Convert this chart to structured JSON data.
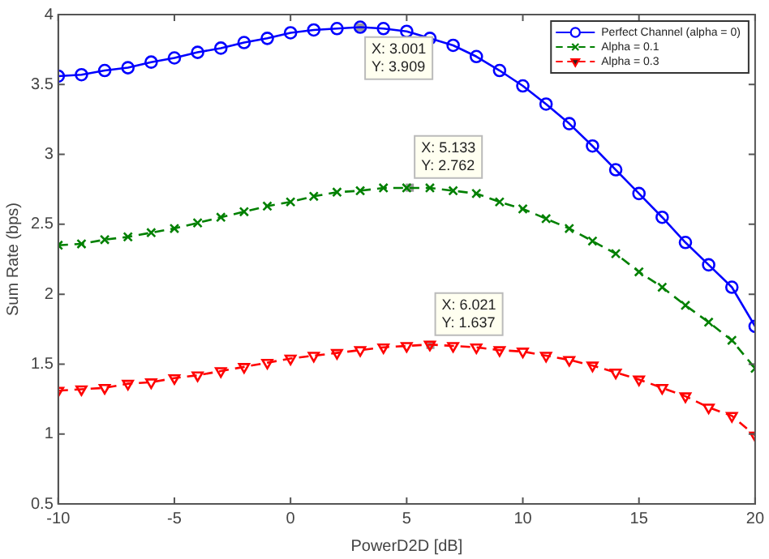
{
  "chart_data": {
    "type": "line",
    "xlabel": "PowerD2D [dB]",
    "ylabel": "Sum Rate (bps)",
    "x": [
      -10,
      -9,
      -8,
      -7,
      -6,
      -5,
      -4,
      -3,
      -2,
      -1,
      0,
      1,
      2,
      3,
      4,
      5,
      6,
      7,
      8,
      9,
      10,
      11,
      12,
      13,
      14,
      15,
      16,
      17,
      18,
      19,
      20
    ],
    "series": [
      {
        "name": "Perfect Channel (alpha = 0)",
        "color": "#0000ff",
        "marker": "circle",
        "line_style": "solid",
        "values": [
          3.56,
          3.57,
          3.6,
          3.62,
          3.66,
          3.69,
          3.73,
          3.76,
          3.8,
          3.83,
          3.87,
          3.89,
          3.9,
          3.91,
          3.9,
          3.88,
          3.83,
          3.78,
          3.7,
          3.6,
          3.49,
          3.36,
          3.22,
          3.06,
          2.89,
          2.72,
          2.55,
          2.37,
          2.21,
          2.05,
          1.77
        ]
      },
      {
        "name": "Alpha = 0.1",
        "color": "#008000",
        "marker": "cross",
        "line_style": "dashed",
        "values": [
          2.35,
          2.36,
          2.39,
          2.41,
          2.44,
          2.47,
          2.51,
          2.55,
          2.59,
          2.63,
          2.66,
          2.7,
          2.73,
          2.74,
          2.76,
          2.76,
          2.76,
          2.74,
          2.72,
          2.66,
          2.61,
          2.54,
          2.47,
          2.38,
          2.29,
          2.16,
          2.05,
          1.92,
          1.8,
          1.67,
          1.47
        ]
      },
      {
        "name": "Alpha = 0.3",
        "color": "#ff0000",
        "marker": "triangle",
        "line_style": "dashed",
        "values": [
          1.31,
          1.32,
          1.33,
          1.36,
          1.37,
          1.4,
          1.42,
          1.45,
          1.48,
          1.51,
          1.54,
          1.56,
          1.58,
          1.6,
          1.62,
          1.63,
          1.64,
          1.63,
          1.62,
          1.6,
          1.59,
          1.56,
          1.53,
          1.49,
          1.44,
          1.39,
          1.33,
          1.27,
          1.19,
          1.13,
          0.99
        ]
      }
    ],
    "xlim": [
      -10,
      20
    ],
    "xticks": [
      -10,
      -5,
      0,
      5,
      10,
      15,
      20
    ],
    "ylim": [
      0.5,
      4
    ],
    "yticks": [
      0.5,
      1,
      1.5,
      2,
      2.5,
      3,
      3.5,
      4
    ],
    "grid": false,
    "legend": "top right",
    "annotations": [
      {
        "text": "X: 3.001\nY: 3.909",
        "x": 3.001,
        "y": 3.909
      },
      {
        "text": "X: 5.133\nY: 2.762",
        "x": 5.133,
        "y": 2.762
      },
      {
        "text": "X: 6.021\nY: 1.637",
        "x": 6.021,
        "y": 1.637
      }
    ]
  }
}
